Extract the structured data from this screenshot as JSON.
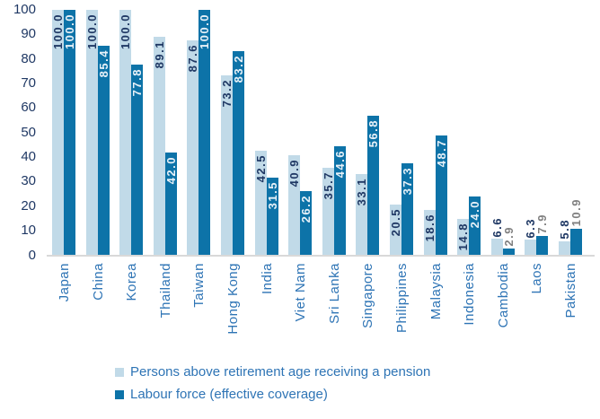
{
  "chart_data": {
    "type": "bar",
    "title": "",
    "categories": [
      "Japan",
      "China",
      "Korea",
      "Thailand",
      "Taiwan",
      "Hong Kong",
      "India",
      "Viet Nam",
      "Sri Lanka",
      "Singapore",
      "Philippines",
      "Malaysia",
      "Indonesia",
      "Cambodia",
      "Laos",
      "Pakistan"
    ],
    "series": [
      {
        "name": "Persons above retirement age receiving a pension",
        "color": "#C1DAE8",
        "values": [
          100.0,
          100.0,
          100.0,
          89.1,
          87.6,
          73.2,
          42.5,
          40.9,
          35.7,
          33.1,
          20.5,
          18.6,
          14.8,
          6.6,
          6.3,
          5.8
        ]
      },
      {
        "name": "Labour force (effective coverage)",
        "color": "#0D73A8",
        "values": [
          100.0,
          85.4,
          77.8,
          42.0,
          100.0,
          83.2,
          31.5,
          26.2,
          44.6,
          56.8,
          37.3,
          48.7,
          24.0,
          2.9,
          7.9,
          10.9
        ]
      }
    ],
    "ylim": [
      0,
      100
    ],
    "yticks": [
      0,
      10,
      20,
      30,
      40,
      50,
      60,
      70,
      80,
      90,
      100
    ],
    "grid": false,
    "legend_position": "bottom",
    "data_labels": true,
    "data_label_format": "0.0",
    "xlabel": "",
    "ylabel": ""
  },
  "style": {
    "tick_label_color": "#1F3864",
    "category_label_color": "#2E74B5",
    "legend_text_color": "#2E74B5",
    "axis_line_color": "#D9D9D9",
    "label_inside_light_color": "#1F3864",
    "label_inside_dark_color": "#E8F1F8",
    "label_outside_light_color": "#1F3864",
    "label_outside_dark_color": "#808080"
  }
}
